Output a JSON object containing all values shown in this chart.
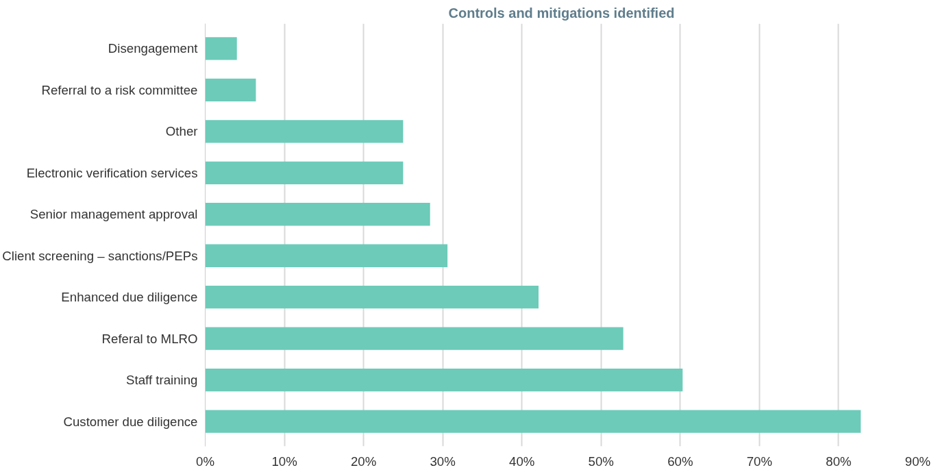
{
  "chart_data": {
    "type": "bar",
    "orientation": "horizontal",
    "title": "Controls and mitigations identified",
    "categories": [
      "Disengagement",
      "Referral to a risk committee",
      "Other",
      "Electronic verification services",
      "Senior management approval",
      "Client screening – sanctions/PEPs",
      "Enhanced due diligence",
      "Referal to MLRO",
      "Staff training",
      "Customer due diligence"
    ],
    "values": [
      4.0,
      6.4,
      25.0,
      25.0,
      28.4,
      30.6,
      42.1,
      52.8,
      60.3,
      82.8
    ],
    "color": "#6ccbb9",
    "xlim": [
      0,
      90
    ],
    "xticks": [
      {
        "value": 0,
        "label": "0%"
      },
      {
        "value": 10,
        "label": "10%"
      },
      {
        "value": 20,
        "label": "20%"
      },
      {
        "value": 30,
        "label": "30%"
      },
      {
        "value": 40,
        "label": "40%"
      },
      {
        "value": 50,
        "label": "50%"
      },
      {
        "value": 60,
        "label": "60%"
      },
      {
        "value": 70,
        "label": "70%"
      },
      {
        "value": 80,
        "label": "80%"
      },
      {
        "value": 90,
        "label": "90%"
      }
    ],
    "grid": "x"
  }
}
